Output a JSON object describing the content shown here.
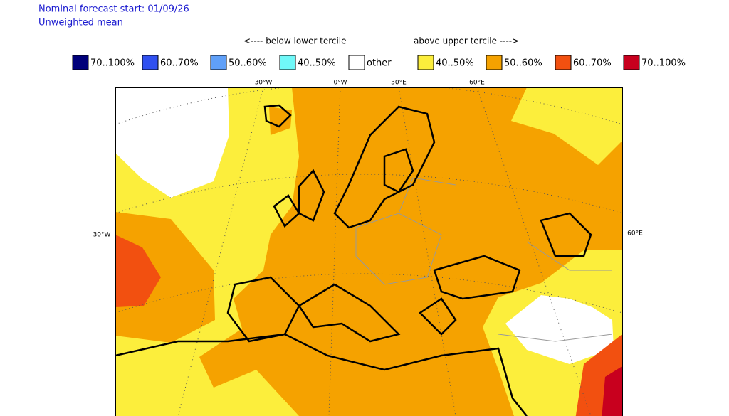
{
  "header": {
    "lines": [
      "Nominal forecast start: 01/09/26",
      "Unweighted mean"
    ]
  },
  "legend": {
    "below": "<---- below lower tercile",
    "above": "above upper tercile ---->",
    "items": [
      {
        "label": "70..100%",
        "color": "#00007a"
      },
      {
        "label": "60..70%",
        "color": "#3050f0"
      },
      {
        "label": "50..60%",
        "color": "#60a0f8"
      },
      {
        "label": "40..50%",
        "color": "#70f8f8"
      },
      {
        "label": "other",
        "color": "#ffffff"
      },
      {
        "label": "40..50%",
        "color": "#fcee3c"
      },
      {
        "label": "50..60%",
        "color": "#f5a200"
      },
      {
        "label": "60..70%",
        "color": "#f25010"
      },
      {
        "label": "70..100%",
        "color": "#c8001e"
      }
    ]
  },
  "map": {
    "top_labels": [
      "30°W",
      "0°W",
      "30°E",
      "60°E"
    ],
    "left_label": "30°W",
    "right_label": "60°E"
  }
}
